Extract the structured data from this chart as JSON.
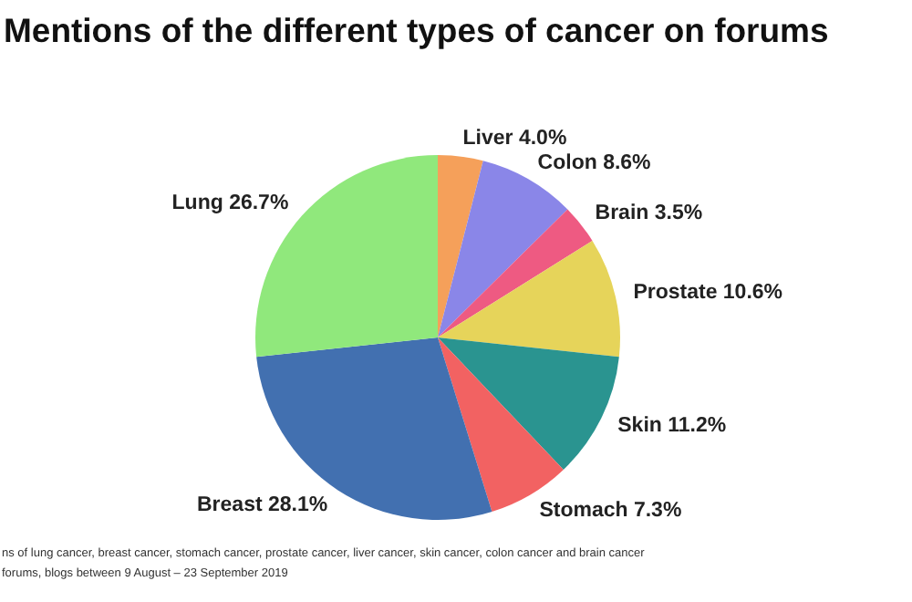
{
  "chart_data": {
    "type": "pie",
    "title": "Mentions of the different types of cancer on forums",
    "categories": [
      "Liver",
      "Colon",
      "Brain",
      "Prostate",
      "Skin",
      "Stomach",
      "Breast",
      "Lung"
    ],
    "values": [
      4.0,
      8.6,
      3.5,
      10.6,
      11.2,
      7.3,
      28.1,
      26.7
    ],
    "value_labels": [
      "4.0%",
      "8.6%",
      "3.5%",
      "10.6%",
      "11.2%",
      "7.3%",
      "28.1%",
      "26.7%"
    ],
    "colors": [
      "#f5a05a",
      "#8a86e8",
      "#ee5a82",
      "#e6d45a",
      "#2a9490",
      "#f26262",
      "#4270b0",
      "#90e87c"
    ],
    "annotations": [
      "ns of lung cancer, breast cancer, stomach cancer, prostate cancer, liver cancer, skin cancer, colon cancer and brain cancer",
      "forums, blogs between 9 August – 23 September 2019"
    ]
  }
}
